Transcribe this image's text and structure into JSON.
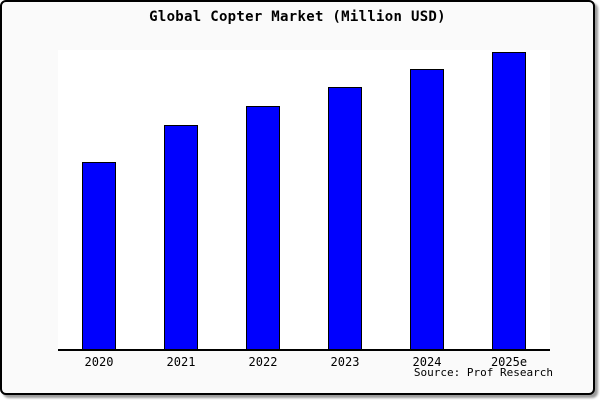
{
  "window": {
    "background_color": "#fafafa",
    "plot_background_color": "#ffffff",
    "border_color": "#000000"
  },
  "chart_data": {
    "type": "bar",
    "title": "Global Copter Market (Million USD)",
    "categories": [
      "2020",
      "2021",
      "2022",
      "2023",
      "2024",
      "2025e"
    ],
    "values": [
      100,
      120,
      130,
      140,
      150,
      159
    ],
    "value_note": "y-axis has no tick labels; values are a relative index estimated from bar heights with 2020 = 100",
    "ylim": [
      0,
      160
    ],
    "xlabel": "",
    "ylabel": "",
    "grid": false,
    "legend": false,
    "source": "Source: Prof Research",
    "bar_color": "#0000fe",
    "bar_border_color": "#000000"
  }
}
